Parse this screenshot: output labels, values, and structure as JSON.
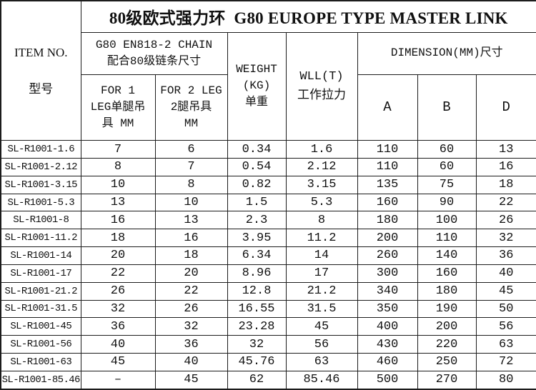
{
  "table": {
    "title": "80级欧式强力环  G80 EUROPE TYPE MASTER LINK",
    "header": {
      "item_no": "ITEM NO.\n型号",
      "chain_group": "G80 EN818-2 CHAIN\n配合80级链条尺寸",
      "for_1_leg": "FOR 1\nLEG单腿吊\n具 MM",
      "for_2_leg": "FOR 2 LEG\n2腿吊具\nMM",
      "weight": "WEIGHT\n(KG)\n单重",
      "wll": "WLL(T)\n工作拉力",
      "dimension": "DIMENSION(MM)尺寸",
      "dim_a": "A",
      "dim_b": "B",
      "dim_d": "D"
    },
    "columns": [
      "ITEM NO. 型号",
      "FOR 1 LEG单腿吊具 MM",
      "FOR 2 LEG 2腿吊具 MM",
      "WEIGHT (KG) 单重",
      "WLL(T) 工作拉力",
      "A",
      "B",
      "D"
    ],
    "rows": [
      [
        "SL-R1001-1.6",
        "7",
        "6",
        "0.34",
        "1.6",
        "110",
        "60",
        "13"
      ],
      [
        "SL-R1001-2.12",
        "8",
        "7",
        "0.54",
        "2.12",
        "110",
        "60",
        "16"
      ],
      [
        "SL-R1001-3.15",
        "10",
        "8",
        "0.82",
        "3.15",
        "135",
        "75",
        "18"
      ],
      [
        "SL-R1001-5.3",
        "13",
        "10",
        "1.5",
        "5.3",
        "160",
        "90",
        "22"
      ],
      [
        "SL-R1001-8",
        "16",
        "13",
        "2.3",
        "8",
        "180",
        "100",
        "26"
      ],
      [
        "SL-R1001-11.2",
        "18",
        "16",
        "3.95",
        "11.2",
        "200",
        "110",
        "32"
      ],
      [
        "SL-R1001-14",
        "20",
        "18",
        "6.34",
        "14",
        "260",
        "140",
        "36"
      ],
      [
        "SL-R1001-17",
        "22",
        "20",
        "8.96",
        "17",
        "300",
        "160",
        "40"
      ],
      [
        "SL-R1001-21.2",
        "26",
        "22",
        "12.8",
        "21.2",
        "340",
        "180",
        "45"
      ],
      [
        "SL-R1001-31.5",
        "32",
        "26",
        "16.55",
        "31.5",
        "350",
        "190",
        "50"
      ],
      [
        "SL-R1001-45",
        "36",
        "32",
        "23.28",
        "45",
        "400",
        "200",
        "56"
      ],
      [
        "SL-R1001-56",
        "40",
        "36",
        "32",
        "56",
        "430",
        "220",
        "63"
      ],
      [
        "SL-R1001-63",
        "45",
        "40",
        "45.76",
        "63",
        "460",
        "250",
        "72"
      ],
      [
        "SL-R1001-85.46",
        "–",
        "45",
        "62",
        "85.46",
        "500",
        "270",
        "80"
      ]
    ],
    "colors": {
      "border": "#1c1c1c",
      "text": "#111111",
      "background": "#ffffff"
    }
  }
}
